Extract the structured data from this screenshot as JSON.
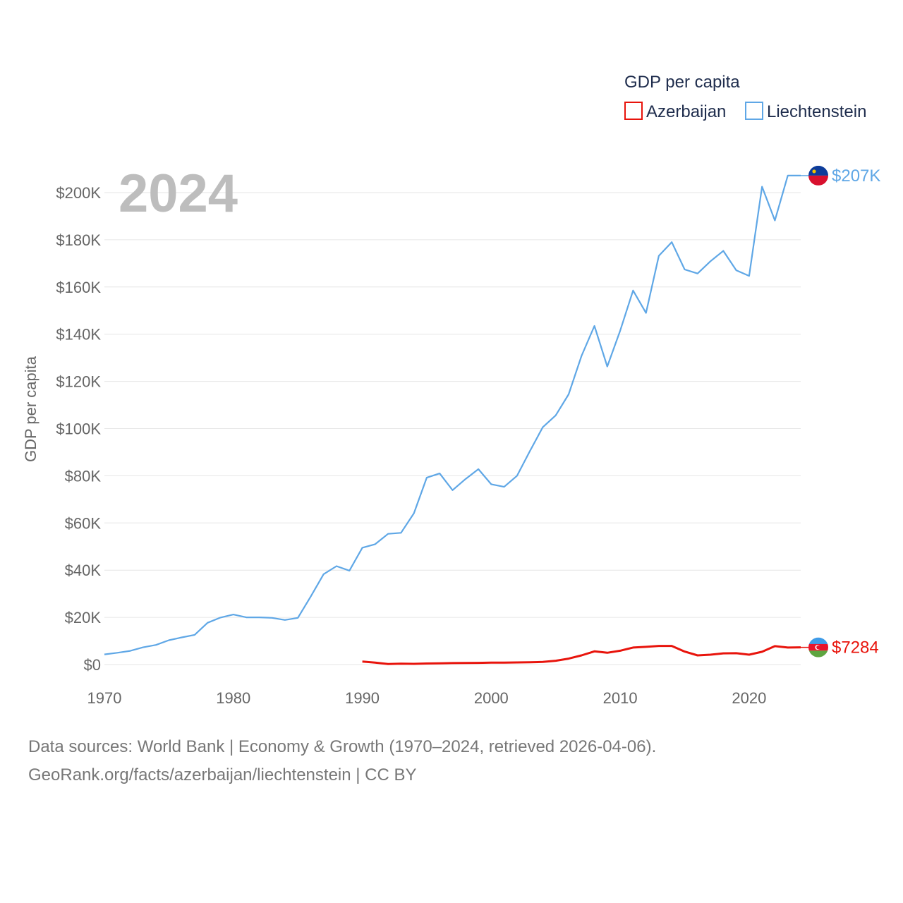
{
  "chart_data": {
    "type": "line",
    "legend_title": "GDP per capita",
    "ylabel": "GDP per capita",
    "year_label": "2024",
    "xlim": [
      1970,
      2024
    ],
    "ylim": [
      0,
      200000
    ],
    "x_ticks": [
      1970,
      1980,
      1990,
      2000,
      2010,
      2020
    ],
    "x_tick_labels": [
      "1970",
      "1980",
      "1990",
      "2000",
      "2010",
      "2020"
    ],
    "y_ticks": [
      0,
      20000,
      40000,
      60000,
      80000,
      100000,
      120000,
      140000,
      160000,
      180000,
      200000
    ],
    "y_tick_labels": [
      "$0",
      "$20K",
      "$40K",
      "$60K",
      "$80K",
      "$100K",
      "$120K",
      "$140K",
      "$160K",
      "$180K",
      "$200K"
    ],
    "legend_placement": "top-right",
    "series": [
      {
        "name": "Azerbaijan",
        "color": "#e8140c",
        "end_label": "$7284",
        "flag": "azerbaijan-flag",
        "x": [
          1990,
          1991,
          1992,
          1993,
          1994,
          1995,
          1996,
          1997,
          1998,
          1999,
          2000,
          2001,
          2002,
          2003,
          2004,
          2005,
          2006,
          2007,
          2008,
          2009,
          2010,
          2011,
          2012,
          2013,
          2014,
          2015,
          2016,
          2017,
          2018,
          2019,
          2020,
          2021,
          2022,
          2023,
          2024
        ],
        "values": [
          1250,
          850,
          250,
          350,
          300,
          450,
          550,
          620,
          700,
          720,
          800,
          850,
          900,
          1000,
          1100,
          1600,
          2500,
          3900,
          5600,
          5000,
          5850,
          7200,
          7500,
          7900,
          7900,
          5500,
          3900,
          4200,
          4750,
          4800,
          4200,
          5400,
          7800,
          7200,
          7284
        ]
      },
      {
        "name": "Liechtenstein",
        "color": "#5fa7e6",
        "end_label": "$207K",
        "flag": "liechtenstein-flag",
        "x": [
          1970,
          1971,
          1972,
          1973,
          1974,
          1975,
          1976,
          1977,
          1978,
          1979,
          1980,
          1981,
          1982,
          1983,
          1984,
          1985,
          1986,
          1987,
          1988,
          1989,
          1990,
          1991,
          1992,
          1993,
          1994,
          1995,
          1996,
          1997,
          1998,
          1999,
          2000,
          2001,
          2002,
          2003,
          2004,
          2005,
          2006,
          2007,
          2008,
          2009,
          2010,
          2011,
          2012,
          2013,
          2014,
          2015,
          2016,
          2017,
          2018,
          2019,
          2020,
          2021,
          2022,
          2023,
          2024
        ],
        "values": [
          4300,
          5000,
          5800,
          7300,
          8300,
          10300,
          11500,
          12600,
          17700,
          19900,
          21200,
          20000,
          20000,
          19800,
          18900,
          19800,
          28800,
          38300,
          41700,
          39800,
          49500,
          51000,
          55400,
          55800,
          64100,
          79200,
          81000,
          73900,
          78600,
          82800,
          76400,
          75300,
          80000,
          90500,
          100600,
          105600,
          114500,
          130800,
          143500,
          126300,
          141500,
          158500,
          149000,
          173200,
          179000,
          167400,
          165700,
          170900,
          175300,
          167100,
          164700,
          202500,
          188200,
          207200,
          207200
        ]
      }
    ]
  },
  "footer": {
    "line1": "Data sources: World Bank | Economy & Growth (1970–2024, retrieved 2026-04-06).",
    "line2": "GeoRank.org/facts/azerbaijan/liechtenstein | CC BY"
  }
}
